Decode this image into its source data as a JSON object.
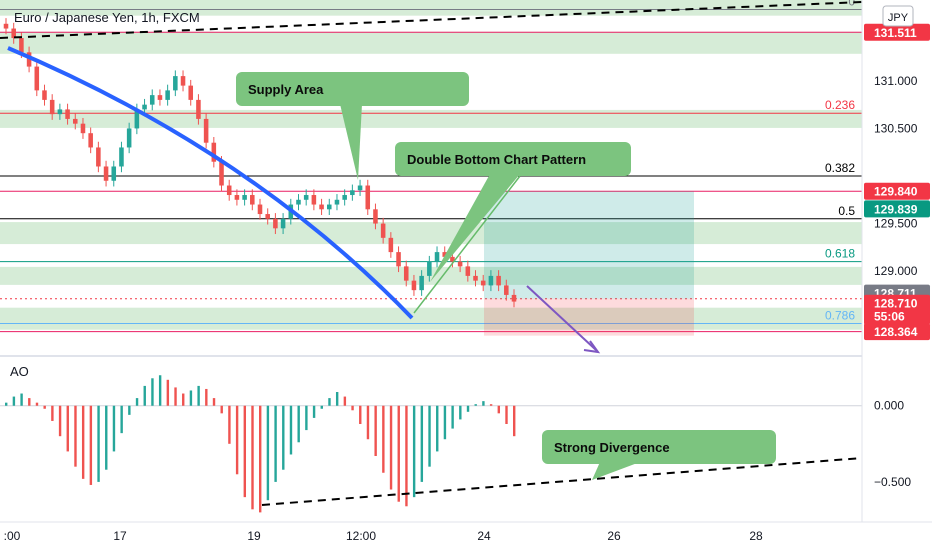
{
  "chart_data": [
    {
      "type": "candlestick",
      "title": "Euro / Japanese Yen, 1h, FXCM",
      "currency_button": "JPY",
      "y_ticks": [
        "131.000",
        "130.500",
        "129.500",
        "129.000"
      ],
      "ylim": [
        128.15,
        131.85
      ],
      "x_ticks": [
        ":00",
        "17",
        "19",
        "12:00",
        "24",
        "26",
        "28"
      ],
      "price_tags": [
        {
          "value": 131.511,
          "label": "131.511",
          "color": "#f23645"
        },
        {
          "value": 129.84,
          "label": "129.840",
          "color": "#f23645"
        },
        {
          "value": 129.839,
          "label": "129.839",
          "color": "#089981"
        },
        {
          "value": 128.711,
          "label": "128.711",
          "color": "#787b86"
        },
        {
          "value": 128.71,
          "label": "128.710",
          "sublabel": "55:06",
          "color": "#f23645"
        },
        {
          "value": 128.364,
          "label": "128.364",
          "color": "#f23645"
        }
      ],
      "fib_levels": [
        {
          "level": "0",
          "value": 131.75
        },
        {
          "level": "0.236",
          "value": 130.66
        },
        {
          "level": "0.382",
          "value": 130.0
        },
        {
          "level": "0.5",
          "value": 129.55
        },
        {
          "level": "0.618",
          "value": 129.1
        },
        {
          "level": "0.786",
          "value": 128.45
        }
      ],
      "zones": [
        131.78,
        131.4,
        130.6,
        129.4,
        128.95,
        128.5
      ],
      "annotations": [
        "Supply Area",
        "Double Bottom Chart Pattern"
      ],
      "series": [
        {
          "close": [
            131.55,
            131.45,
            131.3,
            131.15,
            130.9,
            130.8,
            130.65,
            130.7,
            130.6,
            130.55,
            130.45,
            130.3,
            130.1,
            129.95,
            130.1,
            130.3,
            130.5,
            130.7,
            130.75,
            130.85,
            130.8,
            130.9,
            131.05,
            130.95,
            130.8,
            130.6,
            130.35,
            130.15,
            129.9,
            129.8,
            129.75,
            129.8,
            129.7,
            129.6,
            129.55,
            129.45,
            129.55,
            129.7,
            129.75,
            129.8,
            129.7,
            129.65,
            129.7,
            129.75,
            129.8,
            129.85,
            129.9,
            129.65,
            129.5,
            129.35,
            129.2,
            129.05,
            128.9,
            128.8,
            128.95,
            129.1,
            129.2,
            129.15,
            129.1,
            129.05,
            128.95,
            128.9,
            128.85,
            128.95,
            128.85,
            128.75,
            128.68
          ]
        }
      ]
    },
    {
      "type": "bar",
      "title": "AO",
      "y_ticks": [
        "0.000",
        "−0.500"
      ],
      "ylim": [
        -0.75,
        0.3
      ],
      "annotations": [
        "Strong Divergence"
      ],
      "values": [
        0.02,
        0.06,
        0.08,
        0.05,
        0.02,
        -0.02,
        -0.1,
        -0.2,
        -0.3,
        -0.4,
        -0.48,
        -0.52,
        -0.5,
        -0.42,
        -0.3,
        -0.18,
        -0.06,
        0.05,
        0.13,
        0.18,
        0.2,
        0.17,
        0.12,
        0.08,
        0.1,
        0.13,
        0.11,
        0.05,
        -0.05,
        -0.25,
        -0.45,
        -0.6,
        -0.68,
        -0.7,
        -0.62,
        -0.5,
        -0.42,
        -0.32,
        -0.24,
        -0.16,
        -0.08,
        -0.02,
        0.05,
        0.09,
        0.06,
        -0.03,
        -0.12,
        -0.22,
        -0.33,
        -0.44,
        -0.55,
        -0.63,
        -0.66,
        -0.6,
        -0.5,
        -0.4,
        -0.3,
        -0.22,
        -0.15,
        -0.09,
        -0.04,
        0.01,
        0.03,
        0.01,
        -0.05,
        -0.12,
        -0.2
      ]
    }
  ]
}
